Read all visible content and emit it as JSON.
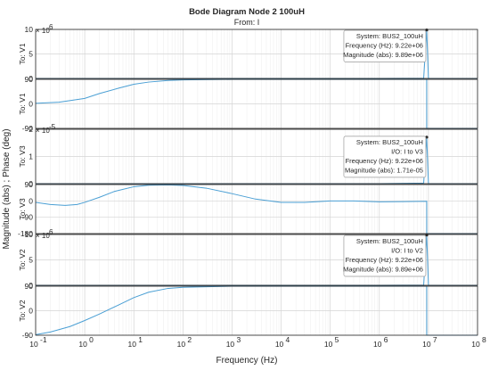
{
  "chart_data": {
    "type": "line",
    "title": "Bode Diagram Node 2 100uH",
    "subtitle": "From: I",
    "xlabel": "Frequency  (Hz)",
    "ylabel": "Magnitude (abs) ; Phase (deg)",
    "xscale": "log",
    "xlim": [
      0.1,
      100000000
    ],
    "xtick_labels": [
      "10",
      "10",
      "10",
      "10",
      "10",
      "10",
      "10",
      "10",
      "10",
      "10"
    ],
    "xtick_exponents": [
      "-1",
      "0",
      "1",
      "2",
      "3",
      "4",
      "5",
      "6",
      "7",
      "8"
    ],
    "grid": true,
    "line_color": "#4a9fd4",
    "panels": [
      {
        "kind": "magnitude",
        "ylabel": "To: V1",
        "ylim": [
          0,
          10
        ],
        "scale_exponent_label": "× 10",
        "scale_exponent": "6",
        "ytick_labels": [
          "0",
          "5",
          "10"
        ],
        "x": [
          0.1,
          1,
          10,
          100,
          1000,
          10000,
          100000,
          1000000,
          8000000,
          9220000,
          10000000,
          100000000
        ],
        "y": [
          0.0,
          0.0,
          0.0,
          0.0,
          0.0,
          0.0,
          0.0,
          0.0,
          0.05,
          9.89,
          0.0,
          0.0
        ],
        "datatip": {
          "lines": [
            "System: BUS2_100uH",
            "Frequency (Hz): 9.22e+06",
            "Magnitude (abs): 9.89e+06"
          ],
          "x": 9220000,
          "y": 9.89
        }
      },
      {
        "kind": "phase",
        "ylabel": "To: V1",
        "ylim": [
          -90,
          90
        ],
        "ytick_labels": [
          "-90",
          "0",
          "90"
        ],
        "x": [
          0.1,
          0.3,
          1,
          2,
          5,
          10,
          20,
          50,
          100,
          1000,
          1000000,
          9220000,
          9230000,
          100000000
        ],
        "y": [
          2,
          6,
          20,
          38,
          58,
          72,
          80,
          86,
          88,
          90,
          90,
          90,
          -90,
          -90
        ]
      },
      {
        "kind": "magnitude",
        "ylabel": "To: V3",
        "ylim": [
          0,
          2
        ],
        "scale_exponent_label": "× 10",
        "scale_exponent": "-5",
        "ytick_labels": [
          "0",
          "1",
          "2"
        ],
        "x": [
          0.1,
          1,
          10,
          100,
          1000,
          10000,
          100000,
          1000000,
          8000000,
          9220000,
          10000000,
          100000000
        ],
        "y": [
          0.0,
          0.0,
          0.0,
          0.0,
          0.0,
          0.0,
          0.0,
          0.0,
          0.02,
          1.71,
          0.0,
          0.0
        ],
        "datatip": {
          "lines": [
            "System: BUS2_100uH",
            "I/O: I to V3",
            "Frequency (Hz): 9.22e+06",
            "Magnitude (abs): 1.71e-05"
          ],
          "x": 9220000,
          "y": 1.71
        }
      },
      {
        "kind": "phase",
        "ylabel": "To: V3",
        "ylim": [
          -180,
          90
        ],
        "ytick_labels": [
          "-180",
          "-90",
          "0",
          "90"
        ],
        "x": [
          0.1,
          0.2,
          0.4,
          0.7,
          1,
          2,
          4,
          10,
          20,
          50,
          100,
          300,
          1000,
          3000,
          10000,
          30000,
          100000,
          300000,
          1000000,
          3000000,
          9220000,
          9230000,
          100000000
        ],
        "y": [
          -8,
          -20,
          -25,
          -20,
          -8,
          20,
          52,
          78,
          86,
          88,
          85,
          70,
          40,
          10,
          -8,
          -8,
          0,
          0,
          -5,
          -4,
          -2,
          -180,
          -180
        ]
      },
      {
        "kind": "magnitude",
        "ylabel": "To: V2",
        "ylim": [
          0,
          10
        ],
        "scale_exponent_label": "× 10",
        "scale_exponent": "6",
        "ytick_labels": [
          "0",
          "5",
          "10"
        ],
        "x": [
          0.1,
          1,
          10,
          100,
          1000,
          10000,
          100000,
          1000000,
          8000000,
          9220000,
          10000000,
          100000000
        ],
        "y": [
          0.0,
          0.0,
          0.0,
          0.0,
          0.0,
          0.0,
          0.0,
          0.0,
          0.05,
          9.89,
          0.0,
          0.0
        ],
        "datatip": {
          "lines": [
            "System: BUS2_100uH",
            "I/O: I to V2",
            "Frequency (Hz): 9.22e+06",
            "Magnitude (abs): 9.89e+06"
          ],
          "x": 9220000,
          "y": 9.89
        }
      },
      {
        "kind": "phase",
        "ylabel": "To: V2",
        "ylim": [
          -90,
          90
        ],
        "ytick_labels": [
          "-90",
          "0",
          "90"
        ],
        "x": [
          0.1,
          0.2,
          0.5,
          1,
          2,
          5,
          10,
          20,
          50,
          100,
          1000,
          1000000,
          9220000,
          9230000,
          100000000
        ],
        "y": [
          -88,
          -78,
          -58,
          -36,
          -12,
          22,
          48,
          68,
          82,
          86,
          90,
          90,
          90,
          -90,
          -90
        ]
      }
    ]
  }
}
